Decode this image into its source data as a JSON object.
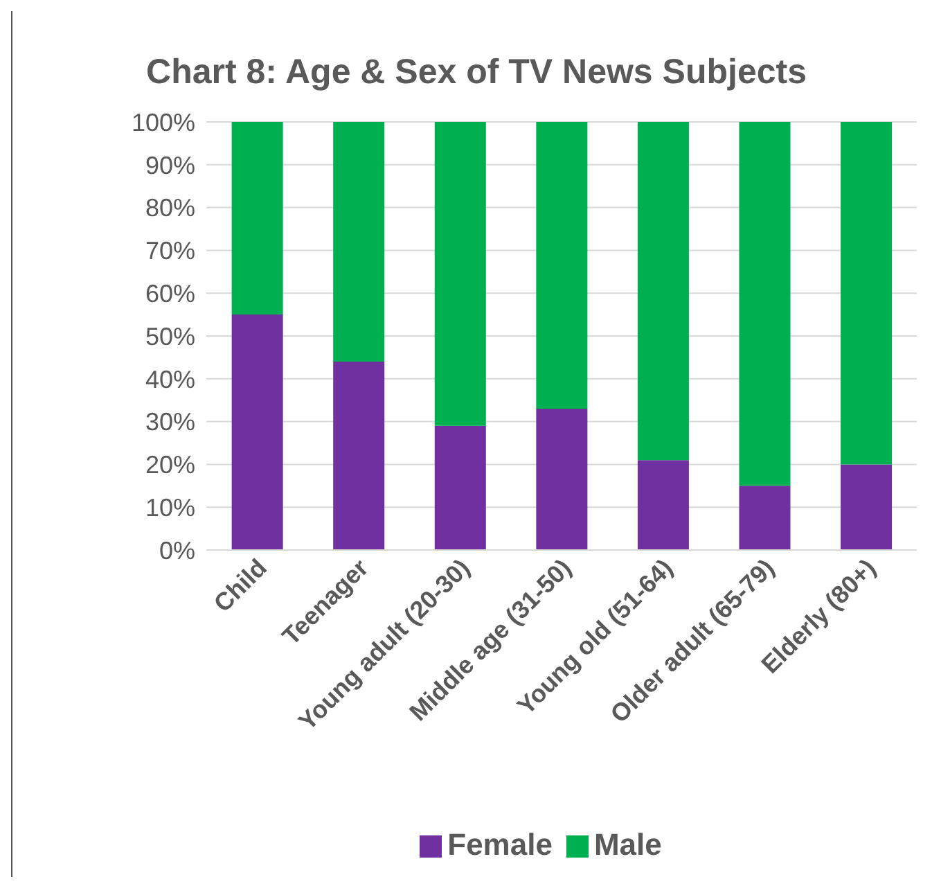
{
  "chart_data": {
    "type": "bar",
    "title": "Chart 8: Age & Sex of TV News Subjects",
    "categories": [
      "Child",
      "Teenager",
      "Young adult (20-30)",
      "Middle age (31-50)",
      "Young old (51-64)",
      "Older adult (65-79)",
      "Elderly (80+)"
    ],
    "series": [
      {
        "name": "Female",
        "color": "#7030a0",
        "values": [
          55,
          44,
          29,
          33,
          21,
          15,
          20
        ]
      },
      {
        "name": "Male",
        "color": "#00b050",
        "values": [
          45,
          56,
          71,
          67,
          79,
          85,
          80
        ]
      }
    ],
    "stacked": true,
    "ylim": [
      0,
      100
    ],
    "yticks": [
      {
        "value": 0,
        "label": "0%"
      },
      {
        "value": 10,
        "label": "10%"
      },
      {
        "value": 20,
        "label": "20%"
      },
      {
        "value": 30,
        "label": "30%"
      },
      {
        "value": 40,
        "label": "40%"
      },
      {
        "value": 50,
        "label": "50%"
      },
      {
        "value": 60,
        "label": "60%"
      },
      {
        "value": 70,
        "label": "70%"
      },
      {
        "value": 80,
        "label": "80%"
      },
      {
        "value": 90,
        "label": "90%"
      },
      {
        "value": 100,
        "label": "100%"
      }
    ],
    "grid": "y",
    "legend": "bottom"
  }
}
